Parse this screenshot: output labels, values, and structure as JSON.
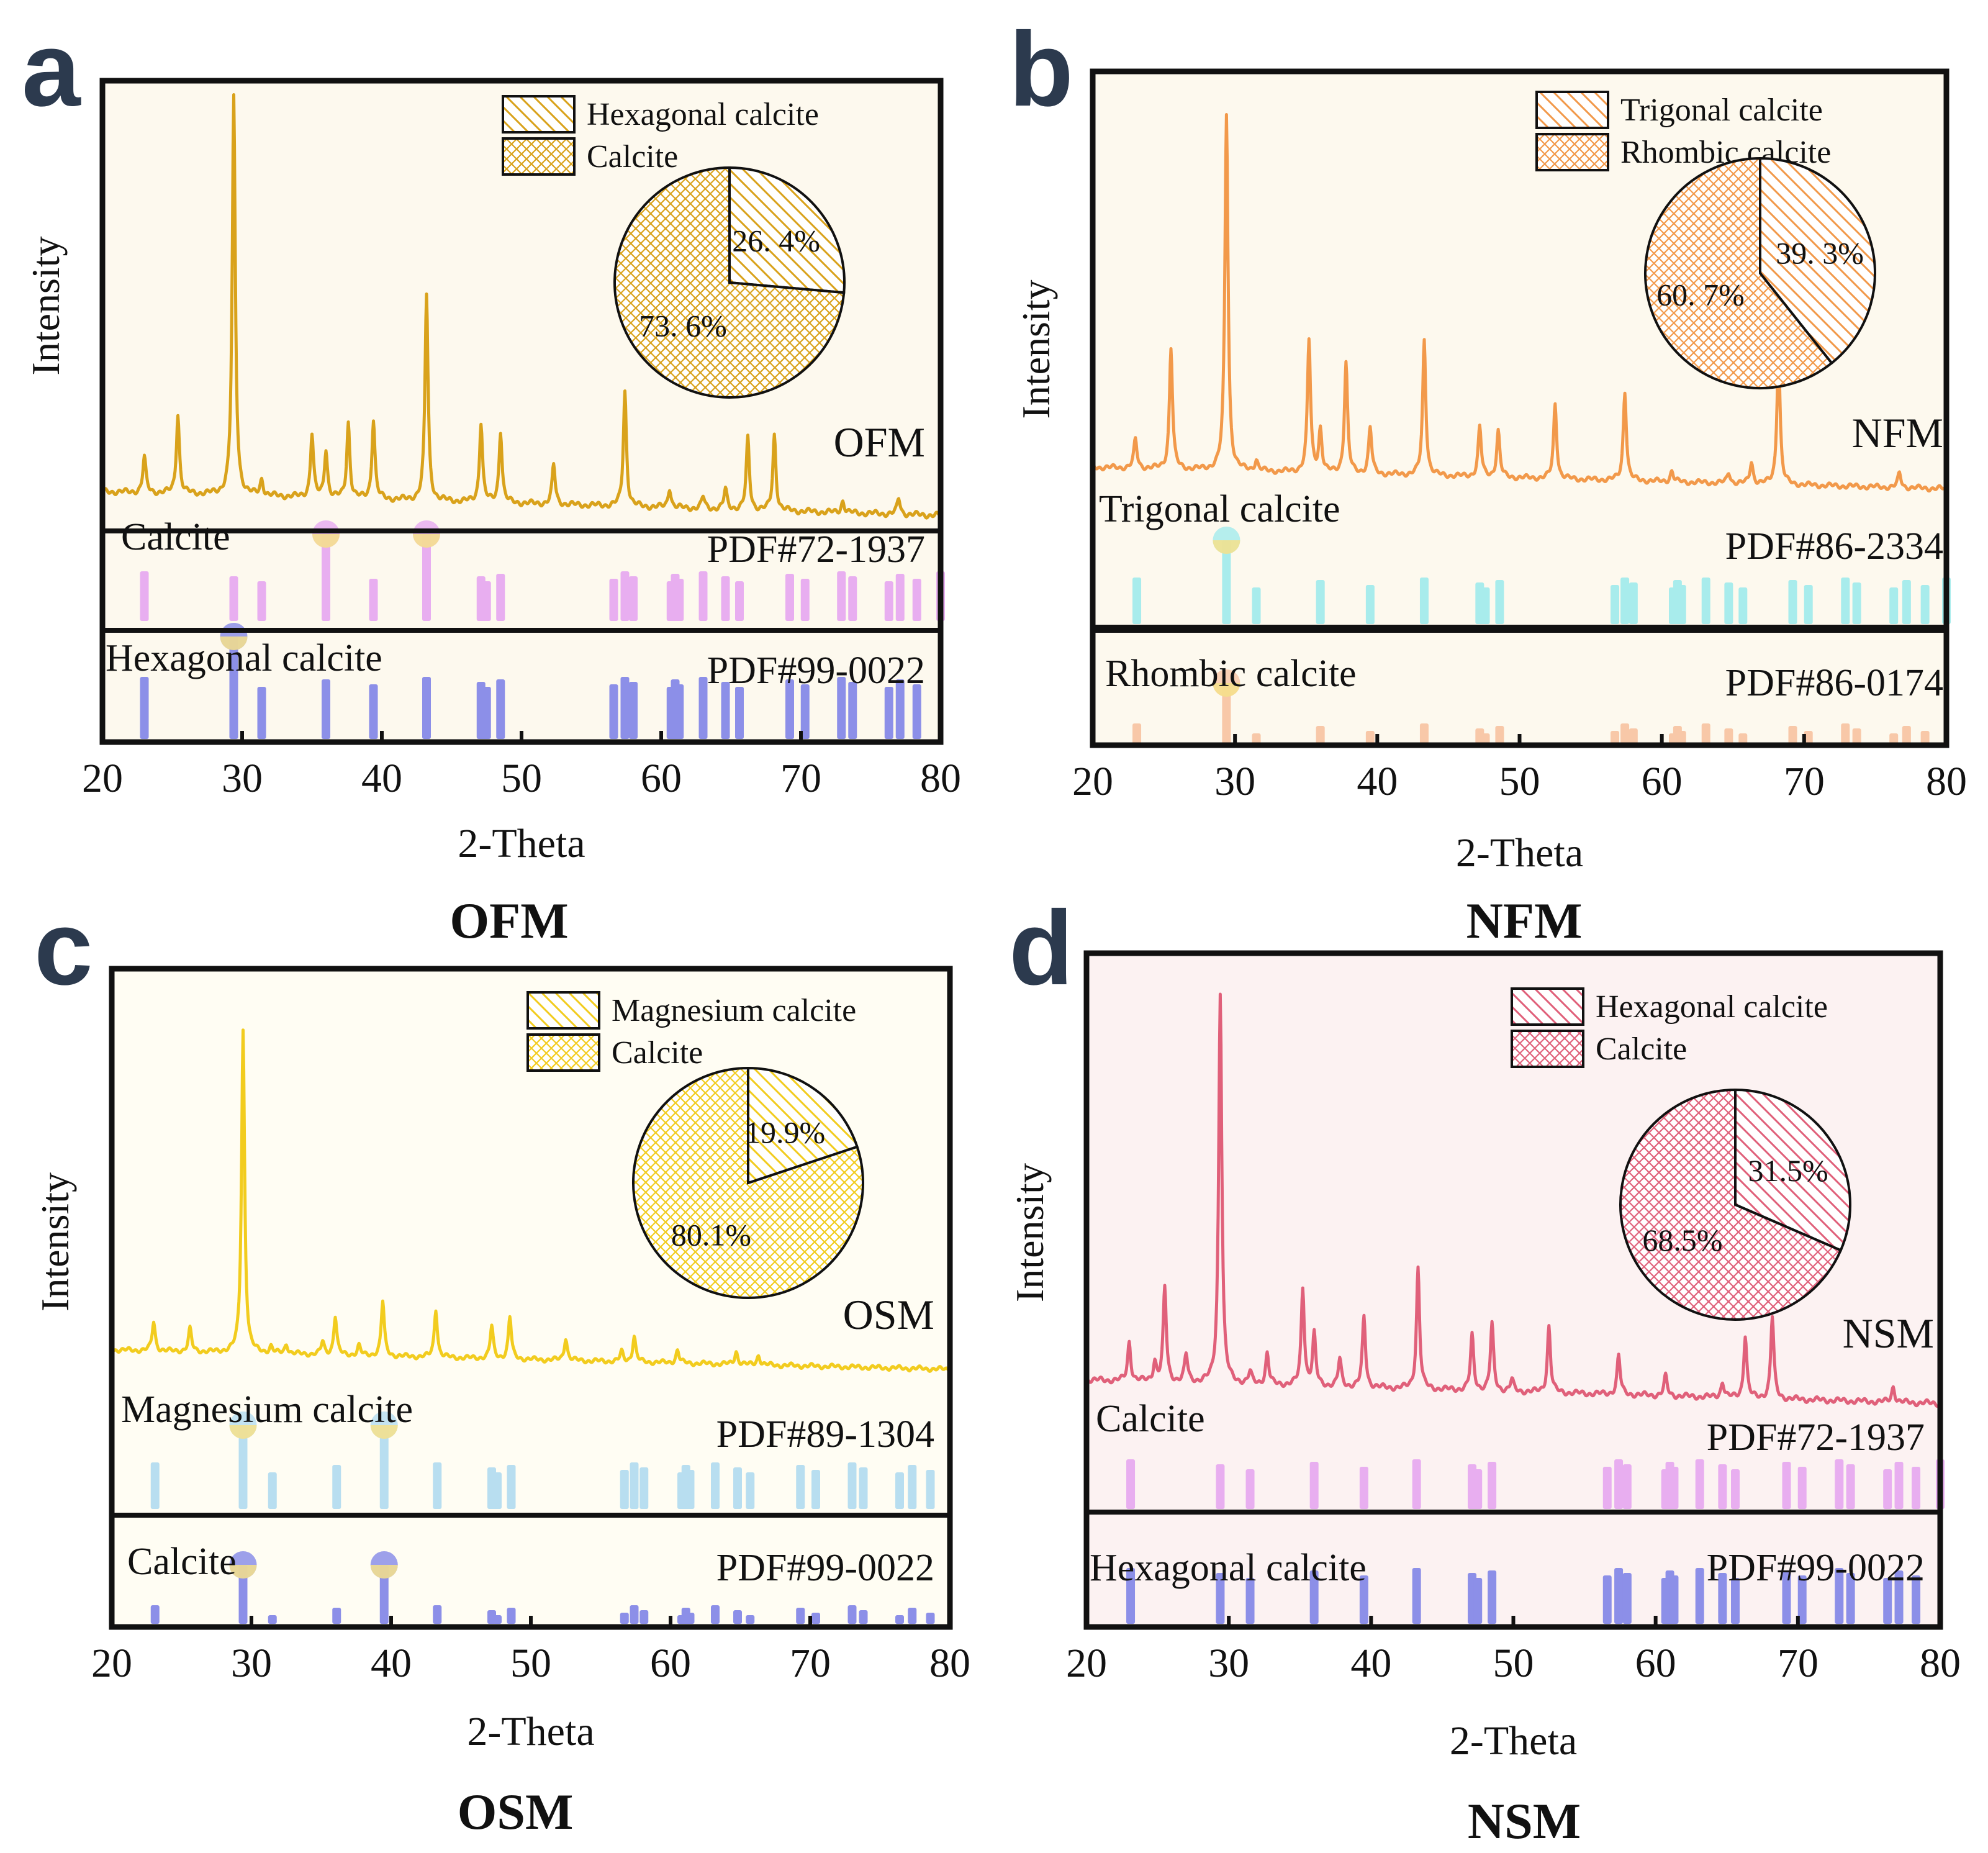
{
  "figure": {
    "axis": {
      "xmin": 20,
      "xmax": 80,
      "ticks": [
        20,
        30,
        40,
        50,
        60,
        70,
        80
      ]
    }
  },
  "chart_data": [
    {
      "type": "line",
      "panel_letter": "a",
      "sample": "OFM",
      "caption": "OFM",
      "xlabel": "2-Theta",
      "ylabel": "Intensity",
      "xlim": [
        20,
        80
      ],
      "color": "#d9a21b",
      "background": "#fdf9ee",
      "peaks": [
        [
          23.0,
          0.09
        ],
        [
          25.4,
          0.2
        ],
        [
          29.4,
          1.0
        ],
        [
          31.4,
          0.04
        ],
        [
          35.0,
          0.16
        ],
        [
          36.0,
          0.12
        ],
        [
          37.6,
          0.19
        ],
        [
          39.4,
          0.2
        ],
        [
          43.2,
          0.52
        ],
        [
          47.1,
          0.2
        ],
        [
          48.5,
          0.18
        ],
        [
          52.3,
          0.1
        ],
        [
          57.4,
          0.29
        ],
        [
          60.6,
          0.05
        ],
        [
          63.0,
          0.03
        ],
        [
          64.6,
          0.05
        ],
        [
          66.2,
          0.18
        ],
        [
          68.1,
          0.19
        ],
        [
          73.0,
          0.03
        ],
        [
          77.0,
          0.04
        ]
      ],
      "references": [
        {
          "phase": "Calcite",
          "pdf": "PDF#72-1937",
          "color": "#e8aef0",
          "lines": [
            23.0,
            29.4,
            31.4,
            36.0,
            39.4,
            43.2,
            47.1,
            47.5,
            48.5,
            56.6,
            57.4,
            58.0,
            60.7,
            61.0,
            61.3,
            63.0,
            64.6,
            65.6,
            69.2,
            70.3,
            72.9,
            73.7,
            76.3,
            77.1,
            78.3,
            80.0
          ],
          "markers": [
            36.0,
            43.2
          ]
        },
        {
          "phase": "Hexagonal calcite",
          "pdf": "PDF#99-0022",
          "color": "#8c8fe8",
          "lines": [
            23.0,
            29.4,
            31.4,
            36.0,
            39.4,
            43.2,
            47.1,
            47.5,
            48.5,
            56.6,
            57.4,
            58.0,
            60.7,
            61.0,
            61.3,
            63.0,
            64.6,
            65.6,
            69.2,
            70.3,
            72.9,
            73.7,
            76.3,
            77.1,
            78.3
          ],
          "markers": [
            29.4
          ]
        }
      ],
      "pie": {
        "legend": [
          {
            "label": "Hexagonal calcite",
            "pattern": "diag"
          },
          {
            "label": "Calcite",
            "pattern": "cross"
          }
        ],
        "slices": [
          {
            "label": "26. 4%",
            "value": 26.4,
            "pattern": "diag"
          },
          {
            "label": "73. 6%",
            "value": 73.6,
            "pattern": "cross"
          }
        ]
      }
    },
    {
      "type": "line",
      "panel_letter": "b",
      "sample": "NFM",
      "caption": "NFM",
      "xlabel": "2-Theta",
      "ylabel": "Intensity",
      "xlim": [
        20,
        80
      ],
      "color": "#f2994a",
      "background": "#fdf9ee",
      "peaks": [
        [
          23.0,
          0.08
        ],
        [
          25.5,
          0.34
        ],
        [
          29.4,
          1.0
        ],
        [
          31.5,
          0.03
        ],
        [
          35.2,
          0.37
        ],
        [
          36.0,
          0.12
        ],
        [
          37.8,
          0.31
        ],
        [
          39.5,
          0.13
        ],
        [
          43.3,
          0.38
        ],
        [
          47.2,
          0.14
        ],
        [
          48.5,
          0.13
        ],
        [
          52.5,
          0.21
        ],
        [
          57.4,
          0.25
        ],
        [
          60.7,
          0.03
        ],
        [
          64.7,
          0.03
        ],
        [
          66.3,
          0.06
        ],
        [
          68.2,
          0.38
        ],
        [
          76.7,
          0.04
        ]
      ],
      "references": [
        {
          "phase": "Trigonal calcite",
          "pdf": "PDF#86-2334",
          "color": "#a8ecec",
          "lines": [
            23.1,
            29.4,
            31.5,
            36.0,
            39.5,
            43.3,
            47.2,
            47.6,
            48.6,
            56.7,
            57.4,
            58.0,
            60.8,
            61.1,
            61.4,
            63.1,
            64.7,
            65.7,
            69.2,
            70.3,
            72.9,
            73.7,
            76.3,
            77.2,
            78.5,
            80.0
          ],
          "markers": [
            29.4
          ]
        },
        {
          "phase": "Rhombic calcite",
          "pdf": "PDF#86-0174",
          "color": "#f8c8a8",
          "lines": [
            23.1,
            29.4,
            31.5,
            36.0,
            39.5,
            43.3,
            47.2,
            47.6,
            48.6,
            56.7,
            57.4,
            58.0,
            60.8,
            61.1,
            61.4,
            63.1,
            64.7,
            65.7,
            69.2,
            70.3,
            72.9,
            73.7,
            76.3,
            77.2,
            78.5
          ],
          "markers": [
            29.4
          ]
        }
      ],
      "pie": {
        "legend": [
          {
            "label": "Trigonal calcite",
            "pattern": "diag"
          },
          {
            "label": "Rhombic calcite",
            "pattern": "cross"
          }
        ],
        "slices": [
          {
            "label": "39. 3%",
            "value": 39.3,
            "pattern": "diag"
          },
          {
            "label": "60. 7%",
            "value": 60.7,
            "pattern": "cross"
          }
        ]
      }
    },
    {
      "type": "line",
      "panel_letter": "c",
      "sample": "OSM",
      "caption": "OSM",
      "xlabel": "2-Theta",
      "ylabel": "Intensity",
      "xlim": [
        20,
        80
      ],
      "color": "#f2cc1e",
      "background": "#fffdf3",
      "peaks": [
        [
          23.0,
          0.09
        ],
        [
          25.6,
          0.07
        ],
        [
          29.4,
          1.0
        ],
        [
          31.4,
          0.02
        ],
        [
          32.5,
          0.03
        ],
        [
          35.1,
          0.04
        ],
        [
          36.0,
          0.12
        ],
        [
          37.7,
          0.03
        ],
        [
          39.4,
          0.17
        ],
        [
          43.2,
          0.15
        ],
        [
          47.2,
          0.1
        ],
        [
          48.5,
          0.13
        ],
        [
          52.5,
          0.07
        ],
        [
          56.5,
          0.03
        ],
        [
          57.4,
          0.08
        ],
        [
          60.5,
          0.04
        ],
        [
          64.7,
          0.04
        ],
        [
          66.3,
          0.03
        ]
      ],
      "references": [
        {
          "phase": "Magnesium calcite",
          "pdf": "PDF#89-1304",
          "color": "#b8def0",
          "lines": [
            23.1,
            29.4,
            31.5,
            36.1,
            39.5,
            43.3,
            47.2,
            47.6,
            48.6,
            56.7,
            57.4,
            58.1,
            60.8,
            61.1,
            61.4,
            63.2,
            64.8,
            65.7,
            69.3,
            70.4,
            73.0,
            73.8,
            76.4,
            77.3,
            78.6
          ],
          "markers": [
            29.4,
            39.5
          ]
        },
        {
          "phase": "Calcite",
          "pdf": "PDF#99-0022",
          "color": "#8c8fe8",
          "lines": [
            23.1,
            29.4,
            31.5,
            36.1,
            39.5,
            43.3,
            47.2,
            47.6,
            48.6,
            56.7,
            57.4,
            58.1,
            60.8,
            61.1,
            61.4,
            63.2,
            64.8,
            65.7,
            69.3,
            70.4,
            73.0,
            73.8,
            76.4,
            77.3,
            78.6
          ],
          "markers": [
            29.4,
            39.5
          ]
        }
      ],
      "pie": {
        "legend": [
          {
            "label": "Magnesium calcite",
            "pattern": "diag"
          },
          {
            "label": "Calcite",
            "pattern": "cross"
          }
        ],
        "slices": [
          {
            "label": "19.9%",
            "value": 19.9,
            "pattern": "diag"
          },
          {
            "label": "80.1%",
            "value": 80.1,
            "pattern": "cross"
          }
        ]
      }
    },
    {
      "type": "line",
      "panel_letter": "d",
      "sample": "NSM",
      "caption": "NSM",
      "xlabel": "2-Theta",
      "ylabel": "Intensity",
      "xlim": [
        20,
        80
      ],
      "color": "#e0607a",
      "background": "#fcf2f2",
      "peaks": [
        [
          23.0,
          0.1
        ],
        [
          24.8,
          0.05
        ],
        [
          25.5,
          0.24
        ],
        [
          27.0,
          0.07
        ],
        [
          29.4,
          1.0
        ],
        [
          31.5,
          0.03
        ],
        [
          32.7,
          0.08
        ],
        [
          35.2,
          0.25
        ],
        [
          36.0,
          0.13
        ],
        [
          37.8,
          0.07
        ],
        [
          39.5,
          0.18
        ],
        [
          43.3,
          0.31
        ],
        [
          47.1,
          0.14
        ],
        [
          48.5,
          0.17
        ],
        [
          49.9,
          0.03
        ],
        [
          52.5,
          0.17
        ],
        [
          57.4,
          0.1
        ],
        [
          60.7,
          0.05
        ],
        [
          64.7,
          0.04
        ],
        [
          66.3,
          0.16
        ],
        [
          68.2,
          0.21
        ],
        [
          76.7,
          0.04
        ]
      ],
      "references": [
        {
          "phase": "Calcite",
          "pdf": "PDF#72-1937",
          "color": "#e8aef0",
          "lines": [
            23.1,
            29.4,
            31.5,
            36.0,
            39.5,
            43.2,
            47.1,
            47.5,
            48.5,
            56.6,
            57.4,
            58.0,
            60.7,
            61.0,
            61.3,
            63.1,
            64.7,
            65.6,
            69.2,
            70.3,
            72.9,
            73.7,
            76.3,
            77.1,
            78.3,
            80.0
          ],
          "markers": []
        },
        {
          "phase": "Hexagonal calcite",
          "pdf": "PDF#99-0022",
          "color": "#8c8fe8",
          "lines": [
            23.1,
            29.4,
            31.5,
            36.0,
            39.5,
            43.2,
            47.1,
            47.5,
            48.5,
            56.6,
            57.4,
            58.0,
            60.7,
            61.0,
            61.3,
            63.1,
            64.7,
            65.6,
            69.2,
            70.3,
            72.9,
            73.7,
            76.3,
            77.1,
            78.3
          ],
          "markers": []
        }
      ],
      "pie": {
        "legend": [
          {
            "label": "Hexagonal calcite",
            "pattern": "diag"
          },
          {
            "label": "Calcite",
            "pattern": "cross"
          }
        ],
        "slices": [
          {
            "label": "31.5%",
            "value": 31.5,
            "pattern": "diag"
          },
          {
            "label": "68.5%",
            "value": 68.5,
            "pattern": "cross"
          }
        ]
      }
    }
  ]
}
